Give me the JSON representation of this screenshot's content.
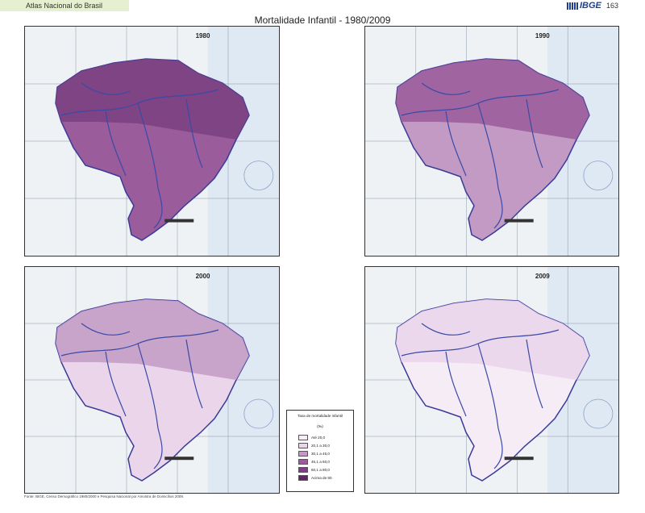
{
  "header": {
    "left_text": "Atlas Nacional do Brasil",
    "logo_text": "IBGE",
    "page_number": "163"
  },
  "title": "Mortalidade Infantil - 1980/2009",
  "maps": [
    {
      "year": "1980",
      "fill": "#9a5c9a",
      "north_fill": "#7a4080"
    },
    {
      "year": "1990",
      "fill": "#c29ac4",
      "north_fill": "#9a5c9a"
    },
    {
      "year": "2000",
      "fill": "#ead5ea",
      "north_fill": "#c29ac4"
    },
    {
      "year": "2009",
      "fill": "#f6ecf6",
      "north_fill": "#ead5ea"
    }
  ],
  "legend": {
    "title": "Taxa de mortalidade infantil",
    "unit": "(‰)",
    "items": [
      {
        "label": "Até 20,0",
        "color": "#f6ecf6"
      },
      {
        "label": "20,1 a 30,0",
        "color": "#ead5ea"
      },
      {
        "label": "30,1 a 45,0",
        "color": "#c29ac4"
      },
      {
        "label": "45,1 a 60,0",
        "color": "#9a5c9a"
      },
      {
        "label": "60,1 a 80,0",
        "color": "#7a4080"
      },
      {
        "label": "Acima de 80",
        "color": "#5a2a60"
      }
    ]
  },
  "footer": "Fonte: IBGE, Censo Demográfico 1980/2000 e Pesquisa Nacional por Amostra de Domicílios 2009."
}
